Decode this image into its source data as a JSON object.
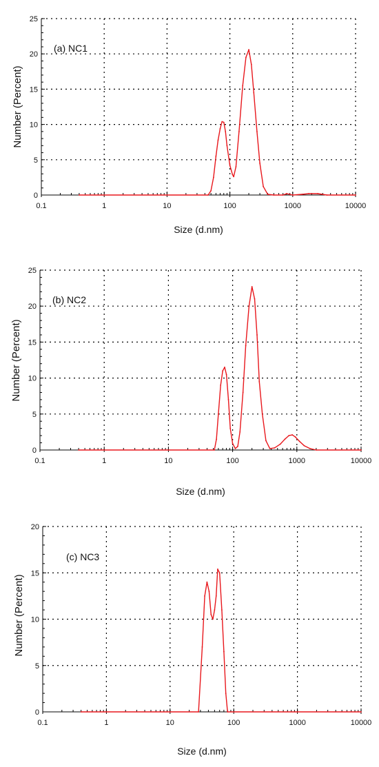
{
  "chart_data": [
    {
      "type": "line",
      "panel_label": "(a) NC1",
      "xlabel": "Size (d.nm)",
      "ylabel": "Number (Percent)",
      "x_scale": "log",
      "xlim": [
        0.1,
        10000
      ],
      "ylim": [
        0,
        25
      ],
      "x_tick_labels": [
        "0.1",
        "1",
        "10",
        "100",
        "1000",
        "10000"
      ],
      "y_tick_labels": [
        "0",
        "5",
        "10",
        "15",
        "20",
        "25"
      ],
      "grid": "dotted",
      "series_color": "#e8161b",
      "series": [
        {
          "x": [
            0.4,
            45,
            50,
            55,
            60,
            65,
            70,
            75,
            80,
            85,
            90,
            100,
            110,
            115,
            125,
            140,
            160,
            180,
            200,
            220,
            240,
            270,
            300,
            340,
            400,
            500,
            700,
            800,
            900,
            1000,
            1400,
            1800,
            2500,
            3500,
            10000
          ],
          "y": [
            0,
            0,
            0.6,
            2.5,
            5.5,
            7.8,
            9.4,
            10.4,
            10.3,
            9.0,
            7.0,
            4.2,
            2.9,
            2.6,
            4.0,
            9.0,
            15.5,
            19.5,
            20.6,
            18.5,
            14.5,
            9.0,
            4.5,
            1.2,
            0.1,
            0,
            0,
            0.2,
            0.1,
            0,
            0.1,
            0.2,
            0.2,
            0,
            0
          ]
        }
      ]
    },
    {
      "type": "line",
      "panel_label": "(b) NC2",
      "xlabel": "Size (d.nm)",
      "ylabel": "Number (Percent)",
      "x_scale": "log",
      "xlim": [
        0.1,
        10000
      ],
      "ylim": [
        0,
        25
      ],
      "x_tick_labels": [
        "0.1",
        "1",
        "10",
        "100",
        "1000",
        "10000"
      ],
      "y_tick_labels": [
        "0",
        "5",
        "10",
        "15",
        "20",
        "25"
      ],
      "grid": "dotted",
      "series_color": "#e8161b",
      "series": [
        {
          "x": [
            0.4,
            52,
            56,
            60,
            65,
            70,
            75,
            80,
            86,
            92,
            100,
            110,
            120,
            130,
            145,
            160,
            180,
            200,
            220,
            240,
            260,
            290,
            330,
            380,
            450,
            550,
            650,
            750,
            850,
            950,
            1100,
            1300,
            1600,
            2000,
            10000
          ],
          "y": [
            0,
            0,
            1.5,
            5.0,
            9.0,
            11.0,
            11.5,
            10.5,
            7.0,
            3.0,
            0.9,
            0.2,
            0.5,
            2.5,
            8.0,
            14.5,
            20.0,
            22.7,
            21.0,
            16.0,
            9.5,
            5.0,
            1.3,
            0.2,
            0.3,
            0.8,
            1.5,
            2.0,
            2.1,
            1.8,
            1.2,
            0.6,
            0.2,
            0,
            0
          ]
        }
      ]
    },
    {
      "type": "line",
      "panel_label": "(c) NC3",
      "xlabel": "Size (d.nm)",
      "ylabel": "Number (Percent)",
      "x_scale": "log",
      "xlim": [
        0.1,
        10000
      ],
      "ylim": [
        0,
        20
      ],
      "x_tick_labels": [
        "0.1",
        "1",
        "10",
        "100",
        "1000",
        "10000"
      ],
      "y_tick_labels": [
        "0",
        "5",
        "10",
        "15",
        "20"
      ],
      "grid": "dotted",
      "series_color": "#e8161b",
      "series": [
        {
          "x": [
            0.4,
            28,
            32,
            35,
            38,
            41,
            44,
            47,
            50,
            53,
            56,
            60,
            65,
            70,
            75,
            80,
            10000
          ],
          "y": [
            0,
            0,
            7.0,
            12.5,
            14.0,
            13.0,
            10.5,
            10.0,
            11.0,
            12.5,
            15.4,
            15.0,
            11.0,
            6.5,
            2.0,
            0,
            0
          ]
        }
      ]
    }
  ]
}
